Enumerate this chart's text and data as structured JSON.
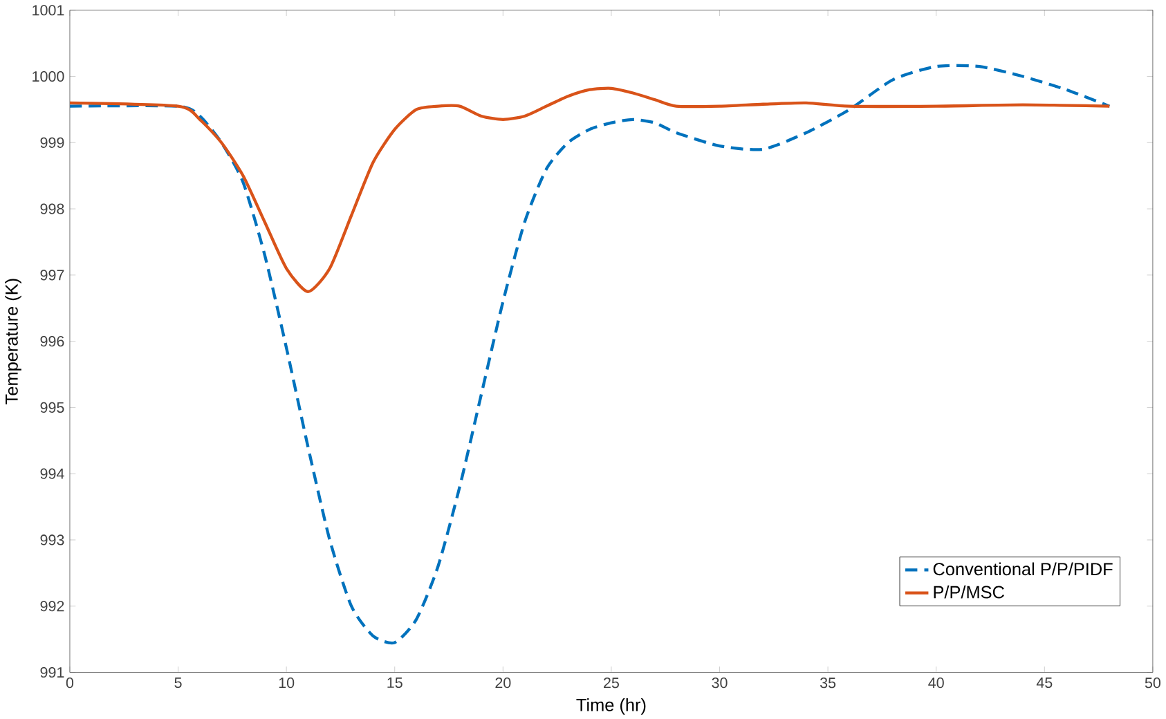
{
  "chart_data": {
    "type": "line",
    "xlabel": "Time (hr)",
    "ylabel": "Temperature (K)",
    "xlim": [
      0,
      50
    ],
    "ylim": [
      991,
      1001
    ],
    "xticks": [
      0,
      5,
      10,
      15,
      20,
      25,
      30,
      35,
      40,
      45,
      50
    ],
    "yticks": [
      991,
      992,
      993,
      994,
      995,
      996,
      997,
      998,
      999,
      1000,
      1001
    ],
    "grid": false,
    "legend": "bottom right",
    "marker": "none",
    "series": [
      {
        "name": "Conventional P/P/PIDF",
        "color": "#0072bd",
        "line_style": "dashed",
        "x": [
          0,
          5,
          6,
          7,
          8,
          9,
          10,
          11,
          12,
          13,
          14,
          15,
          16,
          17,
          18,
          19,
          20,
          21,
          22,
          23,
          24,
          25,
          26,
          27,
          28,
          30,
          32,
          34,
          36,
          38,
          40,
          42,
          44,
          46,
          48
        ],
        "values": [
          999.55,
          999.55,
          999.4,
          999.0,
          998.4,
          997.3,
          995.9,
          994.4,
          993.0,
          992.0,
          991.55,
          991.45,
          991.8,
          992.6,
          993.8,
          995.2,
          996.6,
          997.8,
          998.6,
          999.0,
          999.2,
          999.3,
          999.35,
          999.3,
          999.15,
          998.95,
          998.9,
          999.15,
          999.5,
          999.95,
          1000.15,
          1000.15,
          1000.0,
          999.8,
          999.55
        ]
      },
      {
        "name": "P/P/MSC",
        "color": "#d95319",
        "line_style": "solid",
        "x": [
          0,
          5,
          6,
          7,
          8,
          9,
          10,
          11,
          12,
          13,
          14,
          15,
          16,
          17,
          18,
          19,
          20,
          21,
          22,
          23,
          24,
          25,
          26,
          27,
          28,
          30,
          32,
          34,
          36,
          40,
          44,
          48
        ],
        "values": [
          999.6,
          999.55,
          999.35,
          999.0,
          998.5,
          997.8,
          997.1,
          996.75,
          997.1,
          997.9,
          998.7,
          999.2,
          999.5,
          999.55,
          999.55,
          999.4,
          999.35,
          999.4,
          999.55,
          999.7,
          999.8,
          999.82,
          999.75,
          999.65,
          999.55,
          999.55,
          999.58,
          999.6,
          999.55,
          999.55,
          999.57,
          999.55
        ]
      }
    ]
  }
}
